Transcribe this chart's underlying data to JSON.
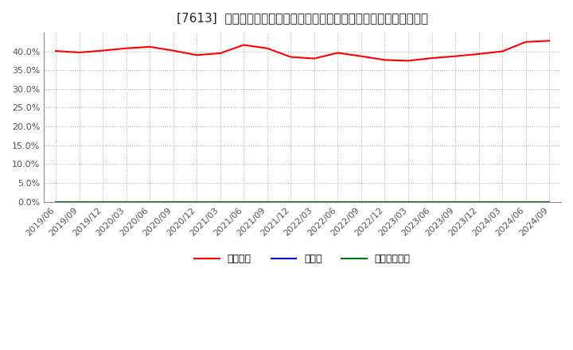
{
  "title": "[7613]  自己資本、のれん、繰延税金資産の総資産に対する比率の推移",
  "x_labels": [
    "2019/06",
    "2019/09",
    "2019/12",
    "2020/03",
    "2020/06",
    "2020/09",
    "2020/12",
    "2021/03",
    "2021/06",
    "2021/09",
    "2021/12",
    "2022/03",
    "2022/06",
    "2022/09",
    "2022/12",
    "2023/03",
    "2023/06",
    "2023/09",
    "2023/12",
    "2024/03",
    "2024/06",
    "2024/09"
  ],
  "equity_ratio": [
    0.401,
    0.397,
    0.402,
    0.408,
    0.412,
    0.402,
    0.39,
    0.395,
    0.417,
    0.408,
    0.385,
    0.381,
    0.396,
    0.387,
    0.377,
    0.375,
    0.382,
    0.387,
    0.393,
    0.4,
    0.425,
    0.428
  ],
  "goodwill_ratio": [
    0,
    0,
    0,
    0,
    0,
    0,
    0,
    0,
    0,
    0,
    0,
    0,
    0,
    0,
    0,
    0,
    0,
    0,
    0,
    0,
    0,
    0
  ],
  "deferred_tax_ratio": [
    0,
    0,
    0,
    0,
    0,
    0,
    0,
    0,
    0,
    0,
    0,
    0,
    0,
    0,
    0,
    0,
    0,
    0,
    0,
    0,
    0,
    0
  ],
  "equity_color": "#ff0000",
  "goodwill_color": "#0000cc",
  "deferred_tax_color": "#007700",
  "legend_labels": [
    "自己資本",
    "のれん",
    "繰延税金資産"
  ],
  "ylim": [
    0.0,
    0.45
  ],
  "yticks": [
    0.0,
    0.05,
    0.1,
    0.15,
    0.2,
    0.25,
    0.3,
    0.35,
    0.4
  ],
  "background_color": "#ffffff",
  "plot_background": "#ffffff",
  "grid_color": "#aaaaaa",
  "title_fontsize": 11,
  "legend_fontsize": 9,
  "tick_fontsize": 8,
  "axis_label_color": "#555555"
}
